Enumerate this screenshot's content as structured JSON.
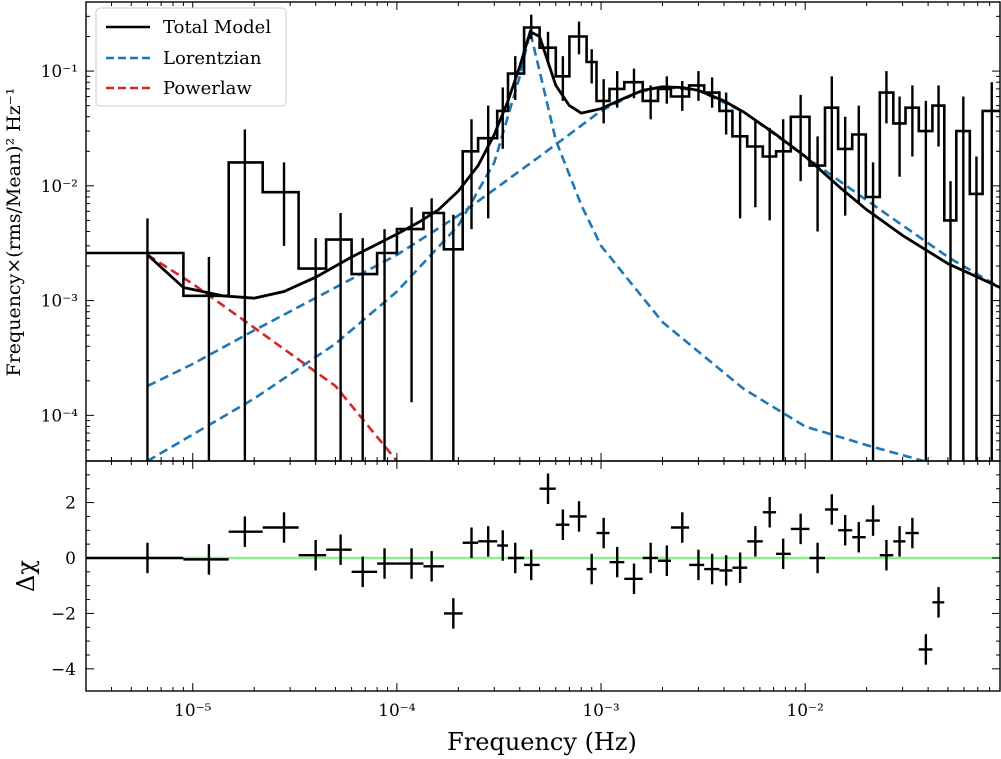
{
  "chart_data": [
    {
      "type": "line",
      "panel": "top",
      "xscale": "log",
      "yscale": "log",
      "xlim": [
        3e-06,
        0.09
      ],
      "ylim": [
        4e-05,
        0.4
      ],
      "ylabel": "Frequency×(rms/Mean)² Hz⁻¹",
      "yticks": [
        {
          "value": 0.0001,
          "label": "10⁻⁴"
        },
        {
          "value": 0.001,
          "label": "10⁻³"
        },
        {
          "value": 0.01,
          "label": "10⁻²"
        },
        {
          "value": 0.1,
          "label": "10⁻¹"
        }
      ],
      "legend": {
        "position": "top-left",
        "entries": [
          {
            "label": "Total Model",
            "color": "#000000",
            "style": "solid"
          },
          {
            "label": "Lorentzian",
            "color": "#1f77b4",
            "style": "dashed"
          },
          {
            "label": "Powerlaw",
            "color": "#d62728",
            "style": "dashed"
          }
        ]
      },
      "data_steps": [
        {
          "x0": 3e-06,
          "x1": 9e-06,
          "y": 0.0026
        },
        {
          "x0": 9e-06,
          "x1": 1.5e-05,
          "y": 0.0011
        },
        {
          "x0": 1.5e-05,
          "x1": 2.2e-05,
          "y": 0.016
        },
        {
          "x0": 2.2e-05,
          "x1": 3.3e-05,
          "y": 0.0088
        },
        {
          "x0": 3.3e-05,
          "x1": 4.5e-05,
          "y": 0.0019
        },
        {
          "x0": 4.5e-05,
          "x1": 6e-05,
          "y": 0.0034
        },
        {
          "x0": 6e-05,
          "x1": 8e-05,
          "y": 0.0017
        },
        {
          "x0": 8e-05,
          "x1": 0.0001,
          "y": 0.0026
        },
        {
          "x0": 0.0001,
          "x1": 0.000135,
          "y": 0.0042
        },
        {
          "x0": 0.000135,
          "x1": 0.00017,
          "y": 0.0058
        },
        {
          "x0": 0.00017,
          "x1": 0.00021,
          "y": 0.0028
        },
        {
          "x0": 0.00021,
          "x1": 0.00025,
          "y": 0.02
        },
        {
          "x0": 0.00025,
          "x1": 0.00031,
          "y": 0.026
        },
        {
          "x0": 0.00031,
          "x1": 0.00035,
          "y": 0.045
        },
        {
          "x0": 0.00035,
          "x1": 0.00042,
          "y": 0.095
        },
        {
          "x0": 0.00042,
          "x1": 0.0005,
          "y": 0.24
        },
        {
          "x0": 0.0005,
          "x1": 0.0006,
          "y": 0.16
        },
        {
          "x0": 0.0006,
          "x1": 0.0007,
          "y": 0.09
        },
        {
          "x0": 0.0007,
          "x1": 0.00085,
          "y": 0.2
        },
        {
          "x0": 0.00085,
          "x1": 0.00095,
          "y": 0.12
        },
        {
          "x0": 0.00095,
          "x1": 0.0011,
          "y": 0.055
        },
        {
          "x0": 0.0011,
          "x1": 0.0013,
          "y": 0.07
        },
        {
          "x0": 0.0013,
          "x1": 0.0016,
          "y": 0.08
        },
        {
          "x0": 0.0016,
          "x1": 0.0019,
          "y": 0.055
        },
        {
          "x0": 0.0019,
          "x1": 0.0022,
          "y": 0.07
        },
        {
          "x0": 0.0022,
          "x1": 0.0027,
          "y": 0.06
        },
        {
          "x0": 0.0027,
          "x1": 0.0032,
          "y": 0.075
        },
        {
          "x0": 0.0032,
          "x1": 0.0038,
          "y": 0.065
        },
        {
          "x0": 0.0038,
          "x1": 0.0044,
          "y": 0.045
        },
        {
          "x0": 0.0044,
          "x1": 0.0052,
          "y": 0.027
        },
        {
          "x0": 0.0052,
          "x1": 0.0062,
          "y": 0.022
        },
        {
          "x0": 0.0062,
          "x1": 0.0072,
          "y": 0.018
        },
        {
          "x0": 0.0072,
          "x1": 0.0085,
          "y": 0.02
        },
        {
          "x0": 0.0085,
          "x1": 0.0105,
          "y": 0.04
        },
        {
          "x0": 0.0105,
          "x1": 0.0125,
          "y": 0.015
        },
        {
          "x0": 0.0125,
          "x1": 0.0145,
          "y": 0.048
        },
        {
          "x0": 0.0145,
          "x1": 0.017,
          "y": 0.021
        },
        {
          "x0": 0.017,
          "x1": 0.0198,
          "y": 0.028
        },
        {
          "x0": 0.0198,
          "x1": 0.0232,
          "y": 0.008
        },
        {
          "x0": 0.0232,
          "x1": 0.027,
          "y": 0.065
        },
        {
          "x0": 0.027,
          "x1": 0.031,
          "y": 0.035
        },
        {
          "x0": 0.031,
          "x1": 0.036,
          "y": 0.048
        },
        {
          "x0": 0.036,
          "x1": 0.042,
          "y": 0.03
        },
        {
          "x0": 0.042,
          "x1": 0.048,
          "y": 0.05
        },
        {
          "x0": 0.048,
          "x1": 0.055,
          "y": 0.005
        },
        {
          "x0": 0.055,
          "x1": 0.064,
          "y": 0.03
        },
        {
          "x0": 0.064,
          "x1": 0.074,
          "y": 0.0085
        },
        {
          "x0": 0.074,
          "x1": 0.09,
          "y": 0.045
        }
      ],
      "errorbars": [
        {
          "x": 6e-06,
          "lo": 3e-05,
          "hi": 0.0052
        },
        {
          "x": 1.2e-05,
          "lo": 3e-05,
          "hi": 0.0024
        },
        {
          "x": 1.8e-05,
          "lo": 3e-05,
          "hi": 0.031
        },
        {
          "x": 2.8e-05,
          "lo": 0.003,
          "hi": 0.016
        },
        {
          "x": 4e-05,
          "lo": 3e-05,
          "hi": 0.0035
        },
        {
          "x": 5.3e-05,
          "lo": 3e-05,
          "hi": 0.0058
        },
        {
          "x": 6.8e-05,
          "lo": 3e-05,
          "hi": 0.0035
        },
        {
          "x": 8.7e-05,
          "lo": 3e-05,
          "hi": 0.0042
        },
        {
          "x": 0.000118,
          "lo": 0.00013,
          "hi": 0.0065
        },
        {
          "x": 0.000148,
          "lo": 3e-05,
          "hi": 0.0078
        },
        {
          "x": 0.000189,
          "lo": 3e-05,
          "hi": 0.0056
        },
        {
          "x": 0.000232,
          "lo": 0.0042,
          "hi": 0.038
        },
        {
          "x": 0.00028,
          "lo": 0.0052,
          "hi": 0.05
        },
        {
          "x": 0.00033,
          "lo": 0.021,
          "hi": 0.072
        },
        {
          "x": 0.00038,
          "lo": 0.056,
          "hi": 0.135
        },
        {
          "x": 0.000455,
          "lo": 0.19,
          "hi": 0.31
        },
        {
          "x": 0.00055,
          "lo": 0.12,
          "hi": 0.22
        },
        {
          "x": 0.00065,
          "lo": 0.055,
          "hi": 0.135
        },
        {
          "x": 0.00078,
          "lo": 0.14,
          "hi": 0.27
        },
        {
          "x": 0.0009,
          "lo": 0.078,
          "hi": 0.155
        },
        {
          "x": 0.00103,
          "lo": 0.035,
          "hi": 0.085
        },
        {
          "x": 0.0012,
          "lo": 0.048,
          "hi": 0.1
        },
        {
          "x": 0.00145,
          "lo": 0.058,
          "hi": 0.105
        },
        {
          "x": 0.00175,
          "lo": 0.038,
          "hi": 0.075
        },
        {
          "x": 0.0021,
          "lo": 0.052,
          "hi": 0.09
        },
        {
          "x": 0.0025,
          "lo": 0.045,
          "hi": 0.082
        },
        {
          "x": 0.003,
          "lo": 0.055,
          "hi": 0.1
        },
        {
          "x": 0.0035,
          "lo": 0.048,
          "hi": 0.088
        },
        {
          "x": 0.0041,
          "lo": 0.028,
          "hi": 0.065
        },
        {
          "x": 0.0048,
          "lo": 0.0052,
          "hi": 0.045
        },
        {
          "x": 0.0057,
          "lo": 0.0065,
          "hi": 0.038
        },
        {
          "x": 0.0067,
          "lo": 0.005,
          "hi": 0.032
        },
        {
          "x": 0.0078,
          "lo": 3e-05,
          "hi": 0.038
        },
        {
          "x": 0.0095,
          "lo": 0.011,
          "hi": 0.062
        },
        {
          "x": 0.0115,
          "lo": 0.004,
          "hi": 0.027
        },
        {
          "x": 0.0135,
          "lo": 3e-05,
          "hi": 0.09
        },
        {
          "x": 0.0157,
          "lo": 0.0055,
          "hi": 0.04
        },
        {
          "x": 0.0183,
          "lo": 0.007,
          "hi": 0.05
        },
        {
          "x": 0.0215,
          "lo": 3e-05,
          "hi": 0.016
        },
        {
          "x": 0.025,
          "lo": 0.035,
          "hi": 0.1
        },
        {
          "x": 0.029,
          "lo": 0.012,
          "hi": 0.06
        },
        {
          "x": 0.0335,
          "lo": 0.018,
          "hi": 0.075
        },
        {
          "x": 0.039,
          "lo": 3e-05,
          "hi": 0.055
        },
        {
          "x": 0.045,
          "lo": 0.022,
          "hi": 0.075
        },
        {
          "x": 0.0515,
          "lo": 3e-05,
          "hi": 0.011
        },
        {
          "x": 0.0595,
          "lo": 3e-05,
          "hi": 0.06
        },
        {
          "x": 0.069,
          "lo": 3e-05,
          "hi": 0.018
        },
        {
          "x": 0.082,
          "lo": 3e-05,
          "hi": 0.08
        }
      ],
      "model_total": {
        "x": [
          6e-06,
          9e-06,
          1.4e-05,
          2e-05,
          2.8e-05,
          4e-05,
          6e-05,
          8e-05,
          0.0001,
          0.00013,
          0.00016,
          0.0002,
          0.00025,
          0.0003,
          0.00035,
          0.0004,
          0.00045,
          0.0005,
          0.00055,
          0.0006,
          0.0007,
          0.0008,
          0.001,
          0.0013,
          0.0016,
          0.002,
          0.0025,
          0.003,
          0.004,
          0.005,
          0.007,
          0.01,
          0.015,
          0.02,
          0.03,
          0.05,
          0.07,
          0.09
        ],
        "y": [
          0.0025,
          0.0013,
          0.0011,
          0.00105,
          0.0012,
          0.0016,
          0.0024,
          0.0031,
          0.0038,
          0.0049,
          0.0062,
          0.009,
          0.015,
          0.028,
          0.055,
          0.11,
          0.22,
          0.2,
          0.12,
          0.075,
          0.05,
          0.043,
          0.047,
          0.058,
          0.068,
          0.073,
          0.072,
          0.068,
          0.055,
          0.044,
          0.029,
          0.018,
          0.0095,
          0.0062,
          0.0037,
          0.0021,
          0.0016,
          0.0013
        ]
      },
      "model_lorentzian_qpo": {
        "x": [
          6e-06,
          2e-05,
          5e-05,
          0.0001,
          0.0002,
          0.0003,
          0.0004,
          0.00045,
          0.0005,
          0.0006,
          0.0008,
          0.001,
          0.002,
          0.005,
          0.01,
          0.02,
          0.038
        ],
        "y": [
          4e-05,
          0.00014,
          0.00042,
          0.0012,
          0.0045,
          0.016,
          0.09,
          0.22,
          0.1,
          0.025,
          0.0068,
          0.003,
          0.00065,
          0.00017,
          8e-05,
          5.5e-05,
          4e-05
        ]
      },
      "model_lorentzian_broad": {
        "x": [
          6e-06,
          1e-05,
          2e-05,
          5e-05,
          0.0001,
          0.0002,
          0.0005,
          0.001,
          0.0015,
          0.002,
          0.003,
          0.005,
          0.01,
          0.02,
          0.05,
          0.09
        ],
        "y": [
          0.00018,
          0.00028,
          0.00055,
          0.0013,
          0.0025,
          0.0055,
          0.018,
          0.045,
          0.065,
          0.073,
          0.068,
          0.044,
          0.018,
          0.0075,
          0.0024,
          0.0013
        ]
      },
      "model_powerlaw": {
        "x": [
          6e-06,
          1e-05,
          2e-05,
          5e-05,
          0.0001
        ],
        "y": [
          0.0025,
          0.0014,
          0.00058,
          0.00018,
          4e-05
        ]
      }
    },
    {
      "type": "scatter",
      "panel": "bottom",
      "xscale": "log",
      "xlim": [
        3e-06,
        0.09
      ],
      "ylim": [
        -4.8,
        3.5
      ],
      "xlabel": "Frequency (Hz)",
      "ylabel": "Δχ",
      "xticks": [
        {
          "value": 1e-05,
          "label": "10⁻⁵"
        },
        {
          "value": 0.0001,
          "label": "10⁻⁴"
        },
        {
          "value": 0.001,
          "label": "10⁻³"
        },
        {
          "value": 0.01,
          "label": "10⁻²"
        }
      ],
      "yticks": [
        {
          "value": 2,
          "label": "2"
        },
        {
          "value": 0,
          "label": "0"
        },
        {
          "value": -2,
          "label": "−2"
        },
        {
          "value": -4,
          "label": "−4"
        }
      ],
      "zero_line_color": "#90ee90",
      "points": [
        {
          "x": 6e-06,
          "y": 0.0,
          "x0": 3e-06,
          "x1": 9e-06
        },
        {
          "x": 1.2e-05,
          "y": -0.05,
          "x0": 9e-06,
          "x1": 1.5e-05
        },
        {
          "x": 1.8e-05,
          "y": 0.95,
          "x0": 1.5e-05,
          "x1": 2.2e-05
        },
        {
          "x": 2.8e-05,
          "y": 1.1,
          "x0": 2.2e-05,
          "x1": 3.3e-05
        },
        {
          "x": 4e-05,
          "y": 0.1,
          "x0": 3.3e-05,
          "x1": 4.5e-05
        },
        {
          "x": 5.3e-05,
          "y": 0.3,
          "x0": 4.5e-05,
          "x1": 6e-05
        },
        {
          "x": 6.8e-05,
          "y": -0.5,
          "x0": 6e-05,
          "x1": 8e-05
        },
        {
          "x": 8.7e-05,
          "y": -0.2,
          "x0": 8e-05,
          "x1": 0.0001
        },
        {
          "x": 0.000118,
          "y": -0.2,
          "x0": 0.0001,
          "x1": 0.000135
        },
        {
          "x": 0.000148,
          "y": -0.3,
          "x0": 0.000135,
          "x1": 0.00017
        },
        {
          "x": 0.000189,
          "y": -2.0,
          "x0": 0.00017,
          "x1": 0.00021
        },
        {
          "x": 0.000232,
          "y": 0.55,
          "x0": 0.00021,
          "x1": 0.00025
        },
        {
          "x": 0.00028,
          "y": 0.6,
          "x0": 0.00025,
          "x1": 0.00031
        },
        {
          "x": 0.00033,
          "y": 0.45,
          "x0": 0.00031,
          "x1": 0.00035
        },
        {
          "x": 0.00038,
          "y": 0.0,
          "x0": 0.00035,
          "x1": 0.00042
        },
        {
          "x": 0.000455,
          "y": -0.25,
          "x0": 0.00042,
          "x1": 0.0005
        },
        {
          "x": 0.00055,
          "y": 2.5,
          "x0": 0.0005,
          "x1": 0.0006
        },
        {
          "x": 0.00065,
          "y": 1.2,
          "x0": 0.0006,
          "x1": 0.0007
        },
        {
          "x": 0.00078,
          "y": 1.5,
          "x0": 0.0007,
          "x1": 0.00085
        },
        {
          "x": 0.0009,
          "y": -0.4,
          "x0": 0.00085,
          "x1": 0.00095
        },
        {
          "x": 0.00103,
          "y": 0.9,
          "x0": 0.00095,
          "x1": 0.0011
        },
        {
          "x": 0.0012,
          "y": -0.15,
          "x0": 0.0011,
          "x1": 0.0013
        },
        {
          "x": 0.00145,
          "y": -0.75,
          "x0": 0.0013,
          "x1": 0.0016
        },
        {
          "x": 0.00175,
          "y": 0.0,
          "x0": 0.0016,
          "x1": 0.0019
        },
        {
          "x": 0.0021,
          "y": -0.1,
          "x0": 0.0019,
          "x1": 0.0022
        },
        {
          "x": 0.0025,
          "y": 1.1,
          "x0": 0.0022,
          "x1": 0.0027
        },
        {
          "x": 0.003,
          "y": -0.25,
          "x0": 0.0027,
          "x1": 0.0032
        },
        {
          "x": 0.0035,
          "y": -0.4,
          "x0": 0.0032,
          "x1": 0.0038
        },
        {
          "x": 0.0041,
          "y": -0.45,
          "x0": 0.0038,
          "x1": 0.0044
        },
        {
          "x": 0.0048,
          "y": -0.35,
          "x0": 0.0044,
          "x1": 0.0052
        },
        {
          "x": 0.0057,
          "y": 0.6,
          "x0": 0.0052,
          "x1": 0.0062
        },
        {
          "x": 0.0067,
          "y": 1.65,
          "x0": 0.0062,
          "x1": 0.0072
        },
        {
          "x": 0.0078,
          "y": 0.15,
          "x0": 0.0072,
          "x1": 0.0085
        },
        {
          "x": 0.0095,
          "y": 1.05,
          "x0": 0.0085,
          "x1": 0.0105
        },
        {
          "x": 0.0115,
          "y": 0.0,
          "x0": 0.0105,
          "x1": 0.0125
        },
        {
          "x": 0.0135,
          "y": 1.75,
          "x0": 0.0125,
          "x1": 0.0145
        },
        {
          "x": 0.0157,
          "y": 1.0,
          "x0": 0.0145,
          "x1": 0.017
        },
        {
          "x": 0.0183,
          "y": 0.75,
          "x0": 0.017,
          "x1": 0.0198
        },
        {
          "x": 0.0215,
          "y": 1.35,
          "x0": 0.0198,
          "x1": 0.0232
        },
        {
          "x": 0.025,
          "y": 0.1,
          "x0": 0.0232,
          "x1": 0.027
        },
        {
          "x": 0.029,
          "y": 0.6,
          "x0": 0.027,
          "x1": 0.031
        },
        {
          "x": 0.0335,
          "y": 0.9,
          "x0": 0.031,
          "x1": 0.036
        },
        {
          "x": 0.039,
          "y": -3.3,
          "x0": 0.036,
          "x1": 0.042
        },
        {
          "x": 0.045,
          "y": -1.6,
          "x0": 0.042,
          "x1": 0.048
        }
      ],
      "error_half_height": 0.55
    }
  ]
}
